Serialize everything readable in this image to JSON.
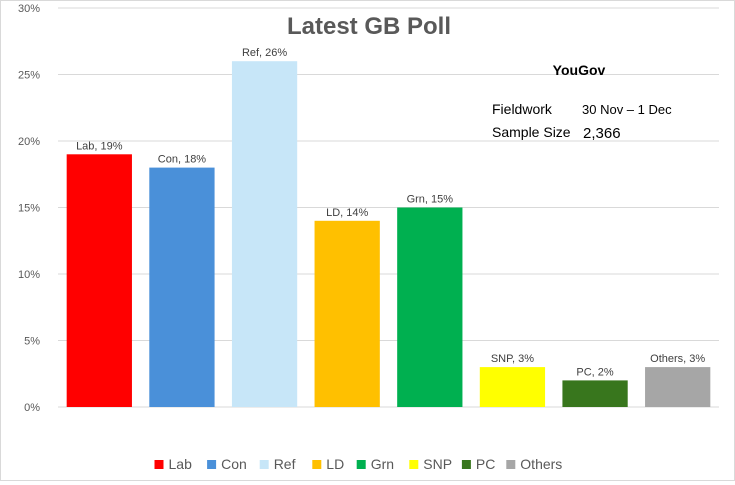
{
  "chart_data": {
    "type": "bar",
    "title": "Latest GB Poll",
    "categories": [
      "Lab",
      "Con",
      "Ref",
      "LD",
      "Grn",
      "SNP",
      "PC",
      "Others"
    ],
    "values": [
      19,
      18,
      26,
      14,
      15,
      3,
      2,
      3
    ],
    "data_labels": [
      "Lab, 19%",
      "Con, 18%",
      "Ref, 26%",
      "LD, 14%",
      "Grn, 15%",
      "SNP, 3%",
      "PC, 2%",
      "Others, 3%"
    ],
    "colors": [
      "#ff0000",
      "#4a90d9",
      "#c7e6f8",
      "#ffc000",
      "#00b050",
      "#ffff00",
      "#38761d",
      "#a6a6a6"
    ],
    "ylim": [
      0,
      30
    ],
    "yticks": [
      0,
      5,
      10,
      15,
      20,
      25,
      30
    ],
    "ytick_labels": [
      "0%",
      "5%",
      "10%",
      "15%",
      "20%",
      "25%",
      "30%"
    ],
    "xlabel": "",
    "ylabel": "",
    "grid": true,
    "legend_position": "bottom"
  },
  "annotation": {
    "pollster": "YouGov",
    "fieldwork_label": "Fieldwork",
    "fieldwork_value": "30 Nov – 1 Dec",
    "sample_label": "Sample Size",
    "sample_value": "2,366"
  }
}
